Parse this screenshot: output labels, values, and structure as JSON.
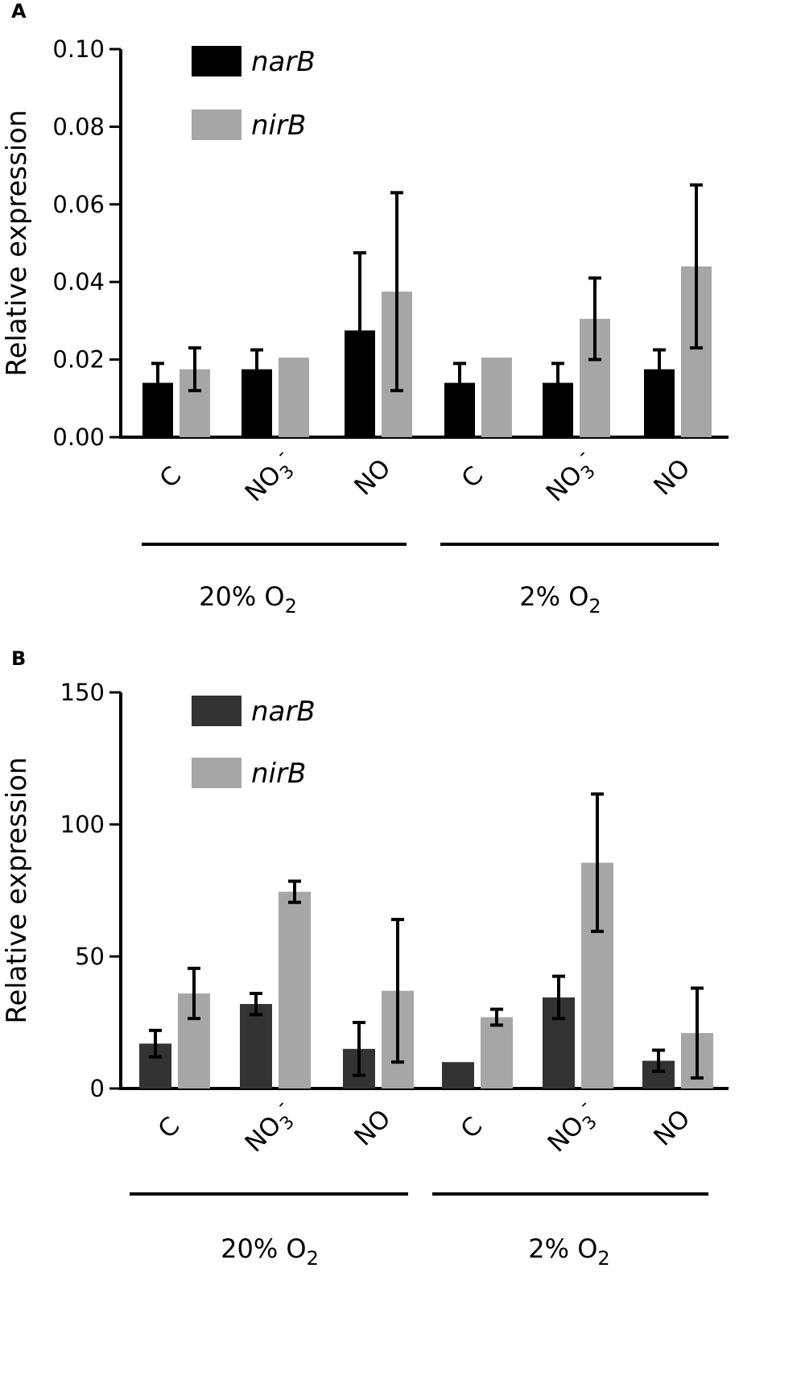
{
  "chart_data": [
    {
      "type": "bar",
      "panel": "A",
      "ylabel": "Relative expression",
      "ylim": [
        0,
        0.1
      ],
      "yticks": [
        "0.00",
        "0.02",
        "0.04",
        "0.06",
        "0.08",
        "0.10"
      ],
      "categories": [
        "C",
        "NO3",
        "NO",
        "C",
        "NO3",
        "NO"
      ],
      "groups": [
        {
          "label": "20% O",
          "sub": "2"
        },
        {
          "label": "2% O",
          "sub": "2"
        }
      ],
      "series": [
        {
          "name": "narB",
          "color": "#000000",
          "values": [
            0.014,
            0.0175,
            0.0275,
            0.014,
            0.014,
            0.0175
          ],
          "errors": [
            0.005,
            0.005,
            0.02,
            0.005,
            0.005,
            0.005
          ]
        },
        {
          "name": "nirB",
          "color": "#a6a6a6",
          "values": [
            0.0175,
            0.0205,
            0.0375,
            0.0205,
            0.0305,
            0.044
          ],
          "errors": [
            0.0055,
            0,
            0.0255,
            0,
            0.0105,
            0.021
          ]
        }
      ]
    },
    {
      "type": "bar",
      "panel": "B",
      "ylabel": "Relative expression",
      "ylim": [
        0,
        150
      ],
      "yticks": [
        "0",
        "50",
        "100",
        "150"
      ],
      "categories": [
        "C",
        "NO3",
        "NO",
        "C",
        "NO3",
        "NO"
      ],
      "groups": [
        {
          "label": "20% O",
          "sub": "2"
        },
        {
          "label": "2% O",
          "sub": "2"
        }
      ],
      "series": [
        {
          "name": "narB",
          "color": "#333333",
          "values": [
            17,
            32,
            15,
            10,
            34.5,
            10.5
          ],
          "errors": [
            5,
            4,
            10,
            0,
            8,
            4
          ]
        },
        {
          "name": "nirB",
          "color": "#a6a6a6",
          "values": [
            36,
            74.5,
            37,
            27,
            85.5,
            21
          ],
          "errors": [
            9.5,
            4,
            27,
            3,
            26,
            17
          ]
        }
      ]
    }
  ]
}
